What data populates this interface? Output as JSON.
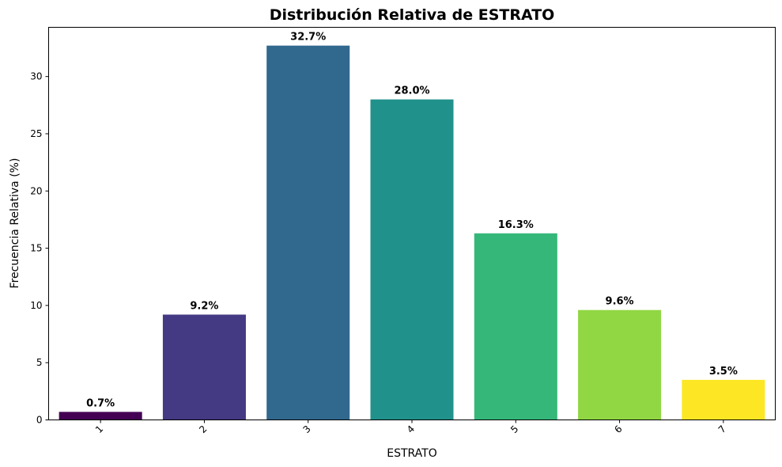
{
  "chart_data": {
    "type": "bar",
    "title": "Distribución Relativa de ESTRATO",
    "xlabel": "ESTRATO",
    "ylabel": "Frecuencia Relativa (%)",
    "categories": [
      "1",
      "2",
      "3",
      "4",
      "5",
      "6",
      "7"
    ],
    "values": [
      0.7,
      9.2,
      32.7,
      28.0,
      16.3,
      9.6,
      3.5
    ],
    "data_labels": [
      "0.7%",
      "9.2%",
      "32.7%",
      "28.0%",
      "16.3%",
      "9.6%",
      "3.5%"
    ],
    "colors": [
      "#440154",
      "#443983",
      "#31688e",
      "#21918c",
      "#35b779",
      "#90d743",
      "#fde725"
    ],
    "ylim": [
      0,
      34.3
    ],
    "yticks": [
      0,
      5,
      10,
      15,
      20,
      25,
      30
    ],
    "ytick_labels": [
      "0",
      "5",
      "10",
      "15",
      "20",
      "25",
      "30"
    ],
    "grid": false,
    "legend": "none"
  }
}
